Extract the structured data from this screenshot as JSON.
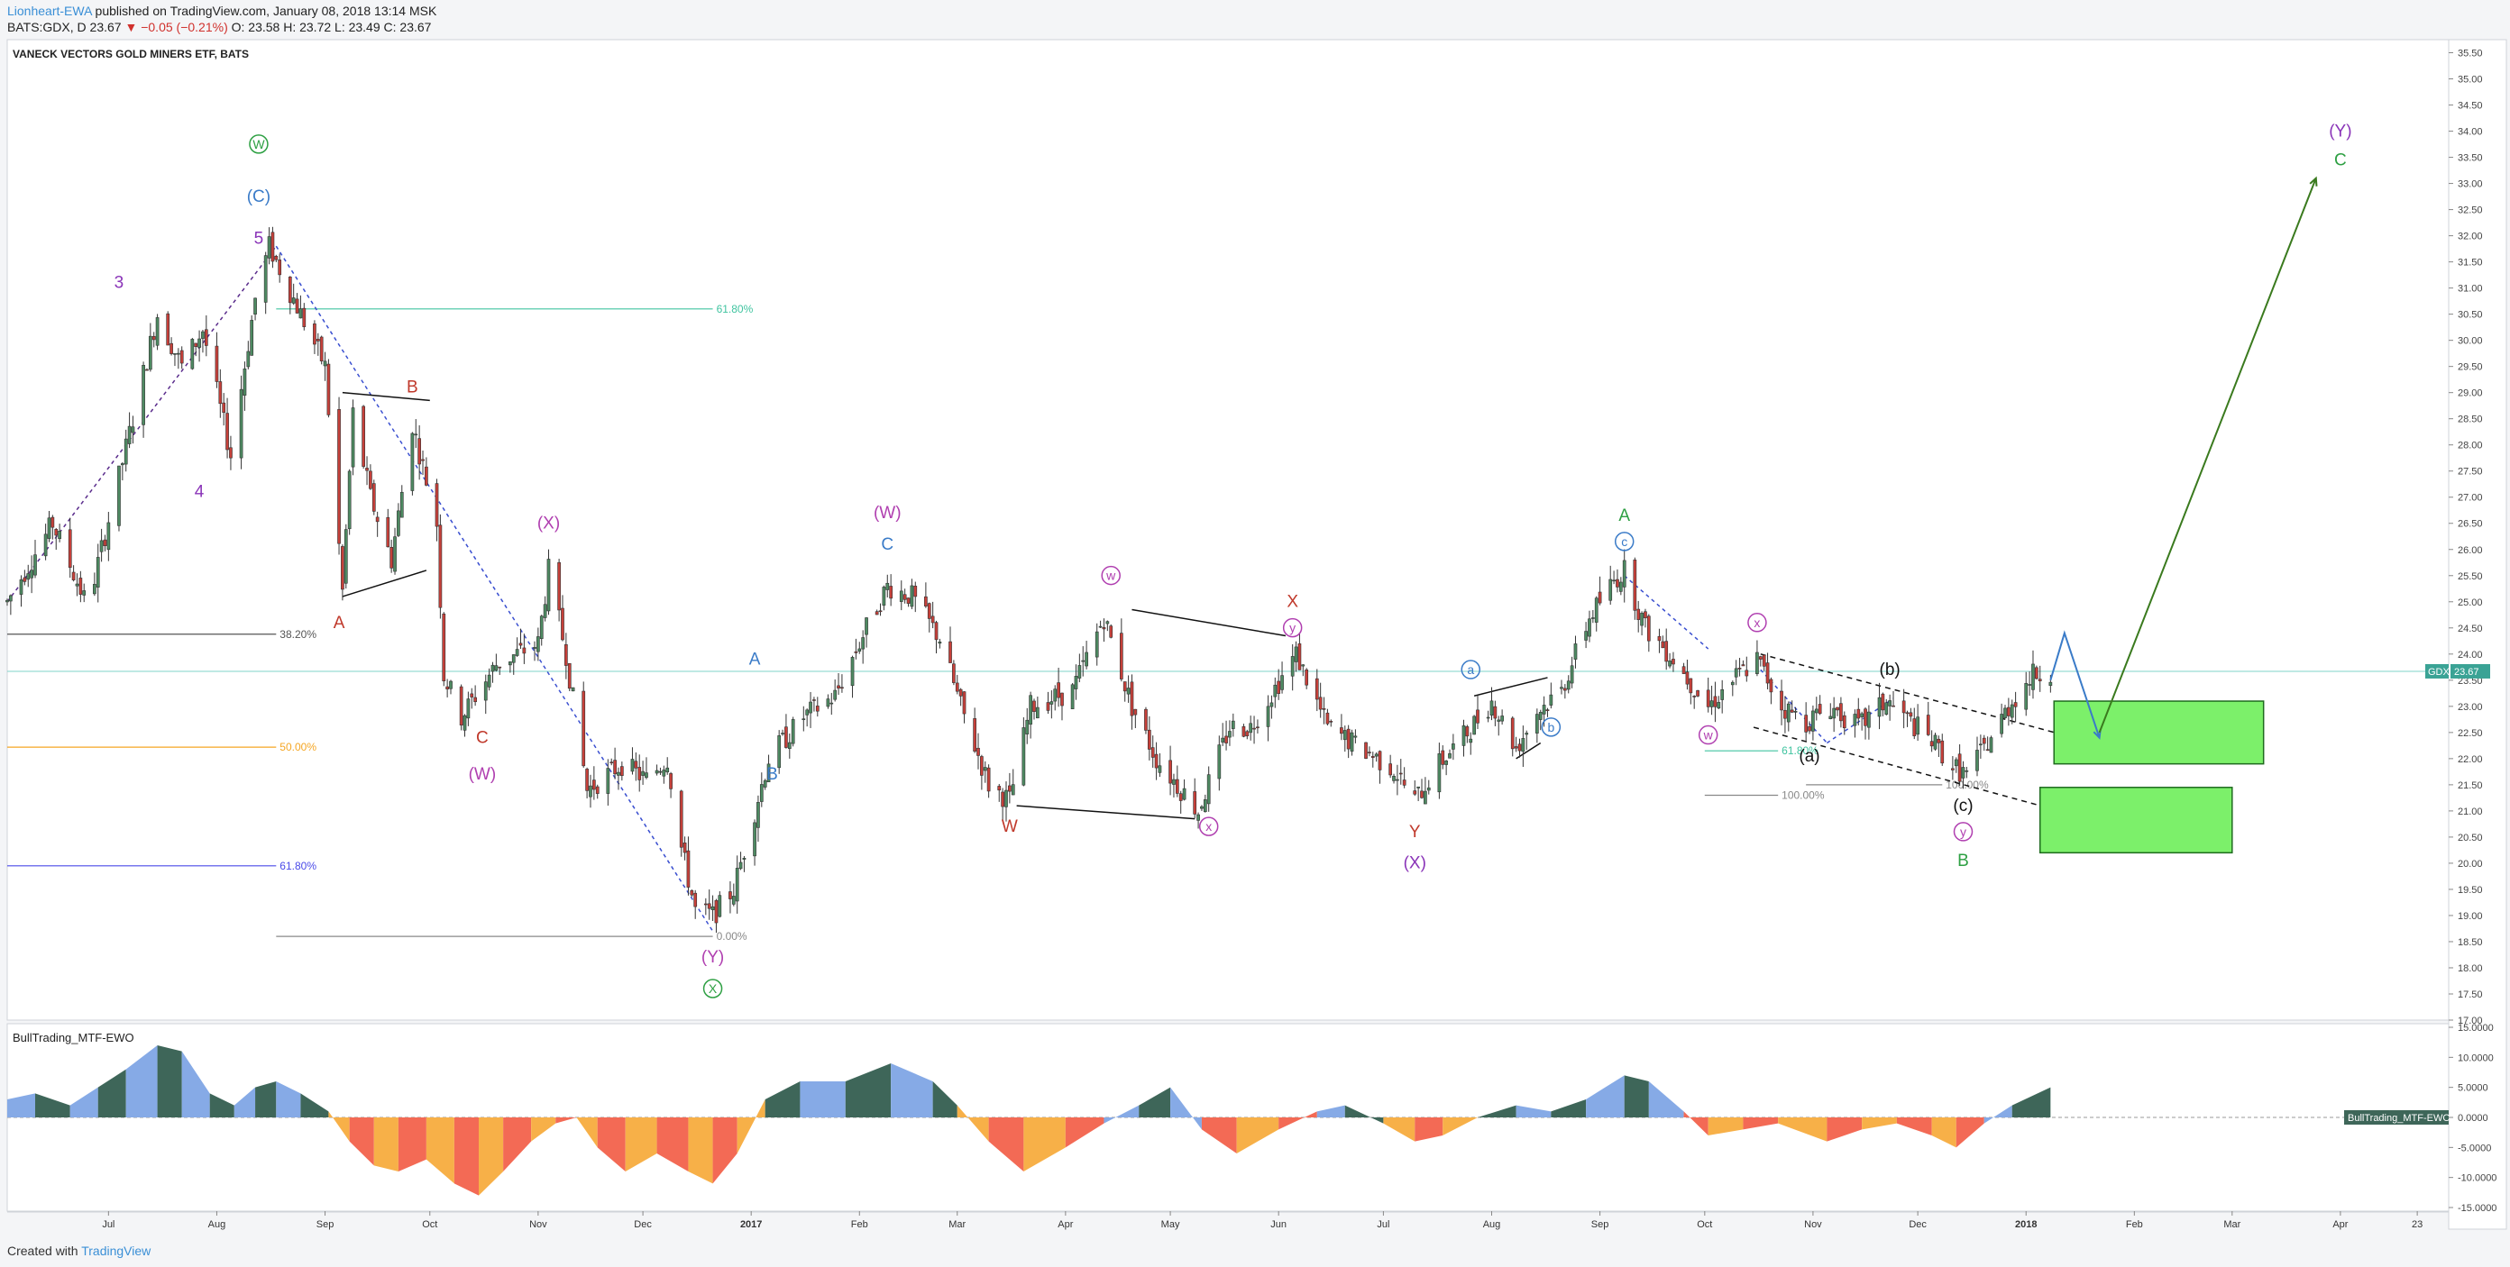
{
  "header": {
    "author": "Lionheart-EWA",
    "published": "published on TradingView.com, January 08, 2018 13:14 MSK",
    "symbol_line": "BATS:GDX, D 23.67",
    "change": "▼ −0.05 (−0.21%)",
    "ohlc": "O: 23.58 H: 23.72 L: 23.49 C: 23.67"
  },
  "footer": {
    "created_with": "Created with",
    "brand": "TradingView"
  },
  "chart_data": [
    {
      "type": "candlestick",
      "title": "VANECK VECTORS GOLD MINERS ETF, BATS",
      "symbol": "GDX",
      "last_price": "23.67",
      "last_price_value": 23.67,
      "ylim": [
        17.0,
        35.75
      ],
      "y_ticks": [
        "35.50",
        "35.00",
        "34.50",
        "34.00",
        "33.50",
        "33.00",
        "32.50",
        "32.00",
        "31.50",
        "31.00",
        "30.50",
        "30.00",
        "29.50",
        "29.00",
        "28.50",
        "28.00",
        "27.50",
        "27.00",
        "26.50",
        "26.00",
        "25.50",
        "25.00",
        "24.50",
        "24.00",
        "23.50",
        "23.00",
        "22.50",
        "22.00",
        "21.50",
        "21.00",
        "20.50",
        "20.00",
        "19.50",
        "19.00",
        "18.50",
        "18.00",
        "17.50",
        "17.00"
      ],
      "x_ticks": [
        "Jul",
        "Aug",
        "Sep",
        "Oct",
        "Nov",
        "Dec",
        "2017",
        "Feb",
        "Mar",
        "Apr",
        "May",
        "Jun",
        "Jul",
        "Aug",
        "Sep",
        "Oct",
        "Nov",
        "Dec",
        "2018",
        "Feb",
        "Mar",
        "Apr",
        "23"
      ],
      "x_tick_dates": [
        "2016-07-01",
        "2016-08-01",
        "2016-09-01",
        "2016-10-01",
        "2016-11-01",
        "2016-12-01",
        "2017-01-01",
        "2017-02-01",
        "2017-03-01",
        "2017-04-01",
        "2017-05-01",
        "2017-06-01",
        "2017-07-01",
        "2017-08-01",
        "2017-09-01",
        "2017-10-01",
        "2017-11-01",
        "2017-12-01",
        "2018-01-01",
        "2018-02-01",
        "2018-03-01",
        "2018-04-01",
        "2018-04-23"
      ],
      "xlim": [
        "2016-06-02",
        "2018-05-02"
      ],
      "price_path": [
        [
          "2016-06-02",
          25.0
        ],
        [
          "2016-06-15",
          26.5
        ],
        [
          "2016-06-25",
          24.9
        ],
        [
          "2016-07-08",
          28.5
        ],
        [
          "2016-07-15",
          30.5
        ],
        [
          "2016-07-22",
          29.5
        ],
        [
          "2016-07-28",
          30.2
        ],
        [
          "2016-08-05",
          27.8
        ],
        [
          "2016-08-12",
          30.8
        ],
        [
          "2016-08-16",
          31.8
        ],
        [
          "2016-08-25",
          30.5
        ],
        [
          "2016-09-01",
          29.5
        ],
        [
          "2016-09-06",
          25.2
        ],
        [
          "2016-09-09",
          28.6
        ],
        [
          "2016-09-14",
          27.0
        ],
        [
          "2016-09-20",
          25.8
        ],
        [
          "2016-09-26",
          28.4
        ],
        [
          "2016-10-03",
          26.5
        ],
        [
          "2016-10-05",
          23.6
        ],
        [
          "2016-10-10",
          22.8
        ],
        [
          "2016-10-20",
          23.8
        ],
        [
          "2016-11-01",
          24.2
        ],
        [
          "2016-11-04",
          25.6
        ],
        [
          "2016-11-09",
          24.0
        ],
        [
          "2016-11-15",
          21.4
        ],
        [
          "2016-11-25",
          21.9
        ],
        [
          "2016-12-02",
          21.6
        ],
        [
          "2016-12-08",
          22.0
        ],
        [
          "2016-12-12",
          20.3
        ],
        [
          "2016-12-16",
          19.1
        ],
        [
          "2016-12-21",
          19.0
        ],
        [
          "2016-12-27",
          19.5
        ],
        [
          "2017-01-06",
          22.0
        ],
        [
          "2017-01-16",
          22.8
        ],
        [
          "2017-01-25",
          23.2
        ],
        [
          "2017-02-03",
          24.5
        ],
        [
          "2017-02-09",
          25.3
        ],
        [
          "2017-02-16",
          25.1
        ],
        [
          "2017-02-24",
          24.3
        ],
        [
          "2017-03-02",
          23.0
        ],
        [
          "2017-03-10",
          21.5
        ],
        [
          "2017-03-16",
          21.2
        ],
        [
          "2017-03-22",
          23.0
        ],
        [
          "2017-04-03",
          23.3
        ],
        [
          "2017-04-12",
          24.7
        ],
        [
          "2017-04-20",
          23.0
        ],
        [
          "2017-04-27",
          22.0
        ],
        [
          "2017-05-09",
          21.0
        ],
        [
          "2017-05-18",
          22.6
        ],
        [
          "2017-05-24",
          22.6
        ],
        [
          "2017-06-06",
          24.0
        ],
        [
          "2017-06-15",
          22.6
        ],
        [
          "2017-06-27",
          22.1
        ],
        [
          "2017-07-04",
          21.8
        ],
        [
          "2017-07-10",
          21.2
        ],
        [
          "2017-07-17",
          21.9
        ],
        [
          "2017-07-25",
          22.5
        ],
        [
          "2017-08-01",
          23.1
        ],
        [
          "2017-08-08",
          22.2
        ],
        [
          "2017-08-14",
          22.9
        ],
        [
          "2017-08-21",
          23.3
        ],
        [
          "2017-08-29",
          24.7
        ],
        [
          "2017-09-05",
          25.4
        ],
        [
          "2017-09-08",
          25.6
        ],
        [
          "2017-09-14",
          24.5
        ],
        [
          "2017-09-21",
          24.0
        ],
        [
          "2017-10-02",
          23.0
        ],
        [
          "2017-10-09",
          23.5
        ],
        [
          "2017-10-16",
          23.9
        ],
        [
          "2017-10-23",
          23.0
        ],
        [
          "2017-10-30",
          22.7
        ],
        [
          "2017-11-06",
          23.0
        ],
        [
          "2017-11-14",
          22.6
        ],
        [
          "2017-11-22",
          23.1
        ],
        [
          "2017-12-04",
          22.4
        ],
        [
          "2017-12-12",
          21.8
        ],
        [
          "2017-12-15",
          21.7
        ],
        [
          "2017-12-21",
          22.3
        ],
        [
          "2017-12-28",
          23.1
        ],
        [
          "2018-01-03",
          23.6
        ],
        [
          "2018-01-08",
          23.67
        ]
      ],
      "fibonacci_levels": [
        {
          "label": "61.80%",
          "price": 30.6,
          "color": "#40c4a0",
          "from": "2016-08-18",
          "to": "2016-12-21"
        },
        {
          "label": "38.20%",
          "price": 24.38,
          "color": "#555555",
          "from": "2016-06-02",
          "to": "2016-08-18"
        },
        {
          "label": "50.00%",
          "price": 22.22,
          "color": "#f5a623",
          "from": "2016-06-02",
          "to": "2016-08-18"
        },
        {
          "label": "61.80%",
          "price": 19.95,
          "color": "#4a4ae8",
          "from": "2016-06-02",
          "to": "2016-08-18"
        },
        {
          "label": "0.00%",
          "price": 18.6,
          "color": "#888888",
          "from": "2016-08-18",
          "to": "2016-12-21"
        },
        {
          "label": "61.80%",
          "price": 22.15,
          "color": "#40c4a0",
          "from": "2017-10-01",
          "to": "2017-10-22"
        },
        {
          "label": "100.00%",
          "price": 21.3,
          "color": "#888888",
          "from": "2017-10-01",
          "to": "2017-10-22"
        },
        {
          "label": "100.00%",
          "price": 21.5,
          "color": "#888888",
          "from": "2017-10-30",
          "to": "2017-12-08"
        }
      ],
      "wave_labels": [
        {
          "text": "W",
          "date": "2016-08-13",
          "price": 33.65,
          "color": "#2ea043",
          "circle": true
        },
        {
          "text": "(C)",
          "date": "2016-08-13",
          "price": 32.65,
          "color": "#3a7bc8"
        },
        {
          "text": "5",
          "date": "2016-08-13",
          "price": 31.85,
          "color": "#8a34b8"
        },
        {
          "text": "3",
          "date": "2016-07-04",
          "price": 31.0,
          "color": "#8a34b8"
        },
        {
          "text": "4",
          "date": "2016-07-27",
          "price": 27.0,
          "color": "#8a34b8"
        },
        {
          "text": "B",
          "date": "2016-09-26",
          "price": 29.0,
          "color": "#c0392b"
        },
        {
          "text": "A",
          "date": "2016-09-05",
          "price": 24.5,
          "color": "#c0392b"
        },
        {
          "text": "C",
          "date": "2016-10-16",
          "price": 22.3,
          "color": "#c0392b"
        },
        {
          "text": "(W)",
          "date": "2016-10-16",
          "price": 21.6,
          "color": "#b03fb0"
        },
        {
          "text": "(X)",
          "date": "2016-11-04",
          "price": 26.4,
          "color": "#b03fb0"
        },
        {
          "text": "(Y)",
          "date": "2016-12-21",
          "price": 18.1,
          "color": "#b03fb0"
        },
        {
          "text": "X",
          "date": "2016-12-21",
          "price": 17.5,
          "color": "#2ea043",
          "circle": true
        },
        {
          "text": "A",
          "date": "2017-01-02",
          "price": 23.8,
          "color": "#3a7bc8"
        },
        {
          "text": "B",
          "date": "2017-01-07",
          "price": 21.6,
          "color": "#3a7bc8"
        },
        {
          "text": "(W)",
          "date": "2017-02-09",
          "price": 26.6,
          "color": "#b03fb0"
        },
        {
          "text": "C",
          "date": "2017-02-09",
          "price": 26.0,
          "color": "#3a7bc8"
        },
        {
          "text": "W",
          "date": "2017-03-16",
          "price": 20.6,
          "color": "#c0392b"
        },
        {
          "text": "w",
          "date": "2017-04-14",
          "price": 25.4,
          "color": "#b03fb0",
          "circle": true
        },
        {
          "text": "x",
          "date": "2017-05-12",
          "price": 20.6,
          "color": "#b03fb0",
          "circle": true
        },
        {
          "text": "X",
          "date": "2017-06-05",
          "price": 24.9,
          "color": "#c0392b"
        },
        {
          "text": "y",
          "date": "2017-06-05",
          "price": 24.4,
          "color": "#b03fb0",
          "circle": true
        },
        {
          "text": "Y",
          "date": "2017-07-10",
          "price": 20.5,
          "color": "#c0392b"
        },
        {
          "text": "(X)",
          "date": "2017-07-10",
          "price": 19.9,
          "color": "#8a34b8"
        },
        {
          "text": "a",
          "date": "2017-07-26",
          "price": 23.6,
          "color": "#3a7bc8",
          "circle": true
        },
        {
          "text": "b",
          "date": "2017-08-18",
          "price": 22.5,
          "color": "#3a7bc8",
          "circle": true
        },
        {
          "text": "A",
          "date": "2017-09-08",
          "price": 26.55,
          "color": "#2ea043"
        },
        {
          "text": "c",
          "date": "2017-09-08",
          "price": 26.05,
          "color": "#3a7bc8",
          "circle": true
        },
        {
          "text": "x",
          "date": "2017-10-16",
          "price": 24.5,
          "color": "#b03fb0",
          "circle": true
        },
        {
          "text": "w",
          "date": "2017-10-02",
          "price": 22.35,
          "color": "#b03fb0",
          "circle": true
        },
        {
          "text": "(a)",
          "date": "2017-10-31",
          "price": 21.95,
          "color": "#111111"
        },
        {
          "text": "(b)",
          "date": "2017-11-23",
          "price": 23.6,
          "color": "#111111"
        },
        {
          "text": "(c)",
          "date": "2017-12-14",
          "price": 21.0,
          "color": "#111111"
        },
        {
          "text": "y",
          "date": "2017-12-14",
          "price": 20.5,
          "color": "#b03fb0",
          "circle": true
        },
        {
          "text": "B",
          "date": "2017-12-14",
          "price": 19.95,
          "color": "#2ea043"
        },
        {
          "text": "(Y)",
          "date": "2018-04-01",
          "price": 33.9,
          "color": "#8a34b8"
        },
        {
          "text": "C",
          "date": "2018-04-01",
          "price": 33.35,
          "color": "#2ea043"
        }
      ],
      "target_boxes": [
        {
          "from": "2018-01-09",
          "to": "2018-03-10",
          "top": 23.1,
          "bottom": 21.9,
          "color": "#7cf06a"
        },
        {
          "from": "2018-01-05",
          "to": "2018-03-01",
          "top": 21.45,
          "bottom": 20.2,
          "color": "#7cf06a"
        }
      ],
      "projections": [
        {
          "color": "#3a7bc8",
          "points": [
            [
              "2018-01-08",
              23.5
            ],
            [
              "2018-01-12",
              24.4
            ],
            [
              "2018-01-22",
              22.4
            ]
          ]
        },
        {
          "color": "#3a7a1e",
          "points": [
            [
              "2018-01-22",
              22.5
            ],
            [
              "2018-03-25",
              33.1
            ]
          ]
        }
      ]
    },
    {
      "type": "area",
      "title": "BullTrading_MTF-EWO",
      "label_tag": "BullTrading_MTF-EWO",
      "ylim": [
        -15,
        15
      ],
      "y_ticks": [
        "15.0000",
        "10.0000",
        "5.0000",
        "0.0000",
        "-5.0000",
        "-10.0000",
        "-15.0000"
      ],
      "series": [
        {
          "name": "BullTrading_MTF-EWO",
          "points": [
            [
              "2016-06-02",
              3
            ],
            [
              "2016-06-10",
              4
            ],
            [
              "2016-06-20",
              2
            ],
            [
              "2016-06-28",
              5
            ],
            [
              "2016-07-06",
              8
            ],
            [
              "2016-07-15",
              12
            ],
            [
              "2016-07-22",
              11
            ],
            [
              "2016-07-30",
              4
            ],
            [
              "2016-08-06",
              2
            ],
            [
              "2016-08-12",
              5
            ],
            [
              "2016-08-18",
              6
            ],
            [
              "2016-08-25",
              4
            ],
            [
              "2016-09-02",
              1
            ],
            [
              "2016-09-08",
              -4
            ],
            [
              "2016-09-15",
              -8
            ],
            [
              "2016-09-22",
              -9
            ],
            [
              "2016-09-30",
              -7
            ],
            [
              "2016-10-08",
              -11
            ],
            [
              "2016-10-15",
              -13
            ],
            [
              "2016-10-22",
              -9
            ],
            [
              "2016-10-30",
              -4
            ],
            [
              "2016-11-06",
              -1
            ],
            [
              "2016-11-12",
              0
            ],
            [
              "2016-11-18",
              -5
            ],
            [
              "2016-11-26",
              -9
            ],
            [
              "2016-12-05",
              -6
            ],
            [
              "2016-12-14",
              -9
            ],
            [
              "2016-12-21",
              -11
            ],
            [
              "2016-12-28",
              -6
            ],
            [
              "2017-01-05",
              3
            ],
            [
              "2017-01-15",
              6
            ],
            [
              "2017-01-28",
              6
            ],
            [
              "2017-02-10",
              9
            ],
            [
              "2017-02-22",
              6
            ],
            [
              "2017-03-01",
              2
            ],
            [
              "2017-03-10",
              -4
            ],
            [
              "2017-03-20",
              -9
            ],
            [
              "2017-04-01",
              -5
            ],
            [
              "2017-04-12",
              -1
            ],
            [
              "2017-04-22",
              2
            ],
            [
              "2017-05-01",
              5
            ],
            [
              "2017-05-10",
              -2
            ],
            [
              "2017-05-20",
              -6
            ],
            [
              "2017-06-01",
              -2
            ],
            [
              "2017-06-12",
              1
            ],
            [
              "2017-06-20",
              2
            ],
            [
              "2017-07-01",
              -1
            ],
            [
              "2017-07-10",
              -4
            ],
            [
              "2017-07-18",
              -3
            ],
            [
              "2017-07-28",
              0
            ],
            [
              "2017-08-08",
              2
            ],
            [
              "2017-08-18",
              1
            ],
            [
              "2017-08-28",
              3
            ],
            [
              "2017-09-08",
              7
            ],
            [
              "2017-09-15",
              6
            ],
            [
              "2017-09-25",
              1
            ],
            [
              "2017-10-02",
              -3
            ],
            [
              "2017-10-12",
              -2
            ],
            [
              "2017-10-22",
              -1
            ],
            [
              "2017-11-05",
              -4
            ],
            [
              "2017-11-15",
              -2
            ],
            [
              "2017-11-25",
              -1
            ],
            [
              "2017-12-05",
              -3
            ],
            [
              "2017-12-12",
              -5
            ],
            [
              "2017-12-20",
              -1
            ],
            [
              "2017-12-28",
              2
            ],
            [
              "2018-01-08",
              5
            ]
          ]
        }
      ]
    }
  ]
}
